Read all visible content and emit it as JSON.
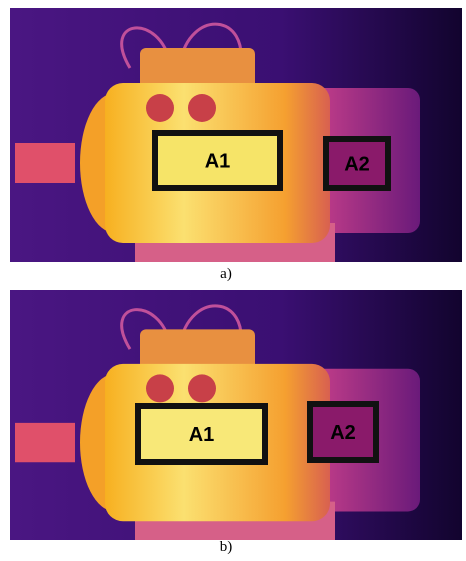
{
  "panels": [
    {
      "caption": "a)",
      "regions": [
        {
          "label": "A1"
        },
        {
          "label": "A2"
        }
      ]
    },
    {
      "caption": "b)",
      "regions": [
        {
          "label": "A1"
        },
        {
          "label": "A2"
        }
      ]
    }
  ]
}
